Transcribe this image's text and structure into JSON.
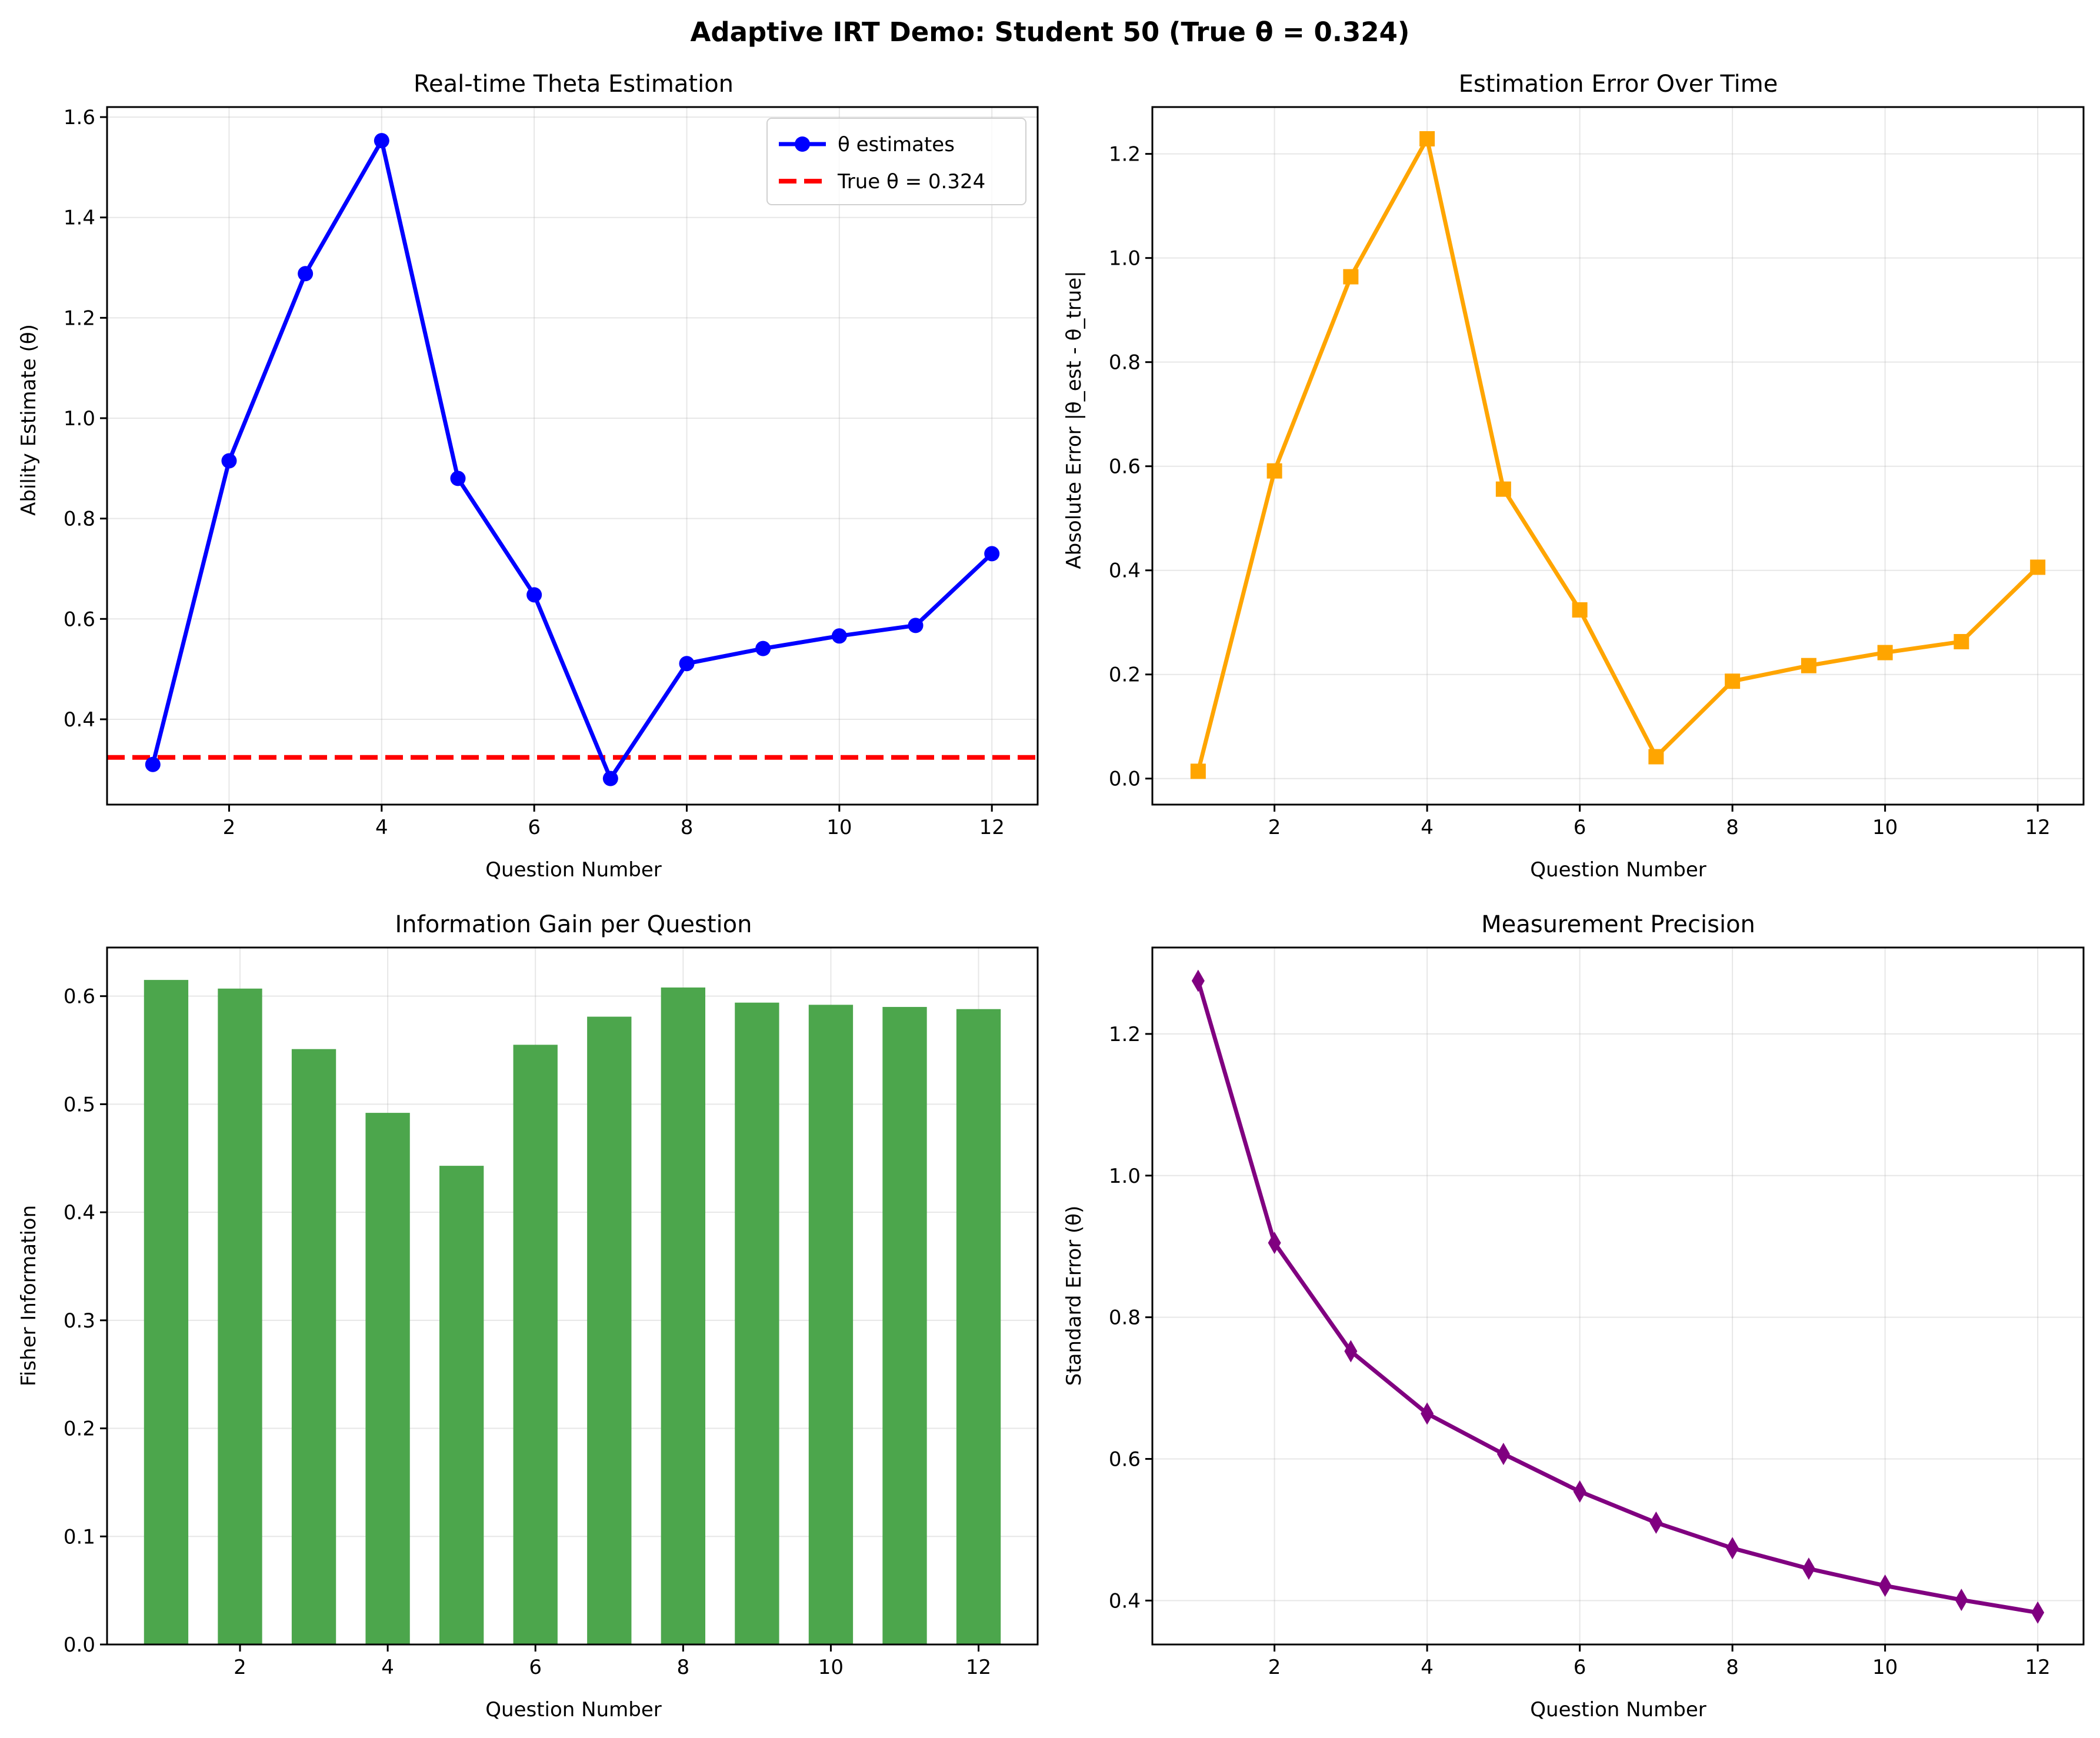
{
  "figure": {
    "suptitle": "Adaptive IRT Demo: Student 50 (True θ = 0.324)"
  },
  "chart_data": [
    {
      "id": "theta",
      "type": "line",
      "title": "Real-time Theta Estimation",
      "xlabel": "Question Number",
      "ylabel": "Ability Estimate (θ)",
      "x": [
        1,
        2,
        3,
        4,
        5,
        6,
        7,
        8,
        9,
        10,
        11,
        12
      ],
      "xlim": [
        0.4,
        12.6
      ],
      "ylim": [
        0.23,
        1.62
      ],
      "xticks": [
        2,
        4,
        6,
        8,
        10,
        12
      ],
      "yticks": [
        0.4,
        0.6,
        0.8,
        1.0,
        1.2,
        1.4,
        1.6
      ],
      "ydecimals": 1,
      "grid": true,
      "legend_position": "upper right",
      "series": [
        {
          "name": "θ estimates",
          "values": [
            0.31,
            0.915,
            1.288,
            1.553,
            0.88,
            0.648,
            0.282,
            0.511,
            0.541,
            0.566,
            0.587,
            0.73
          ],
          "color": "#0000ff",
          "marker": "circle"
        }
      ],
      "reference_line": {
        "label": "True θ = 0.324",
        "y": 0.324,
        "color": "#ff0000",
        "style": "dashed"
      }
    },
    {
      "id": "error",
      "type": "line",
      "title": "Estimation Error Over Time",
      "xlabel": "Question Number",
      "ylabel": "Absolute Error |θ_est - θ_true|",
      "x": [
        1,
        2,
        3,
        4,
        5,
        6,
        7,
        8,
        9,
        10,
        11,
        12
      ],
      "xlim": [
        0.4,
        12.6
      ],
      "ylim": [
        -0.05,
        1.29
      ],
      "xticks": [
        2,
        4,
        6,
        8,
        10,
        12
      ],
      "yticks": [
        0.0,
        0.2,
        0.4,
        0.6,
        0.8,
        1.0,
        1.2
      ],
      "ydecimals": 1,
      "grid": true,
      "series": [
        {
          "values": [
            0.014,
            0.591,
            0.964,
            1.229,
            0.556,
            0.324,
            0.042,
            0.187,
            0.217,
            0.242,
            0.263,
            0.406
          ],
          "color": "#ffa500",
          "marker": "square"
        }
      ]
    },
    {
      "id": "info",
      "type": "bar",
      "title": "Information Gain per Question",
      "xlabel": "Question Number",
      "ylabel": "Fisher Information",
      "x": [
        1,
        2,
        3,
        4,
        5,
        6,
        7,
        8,
        9,
        10,
        11,
        12
      ],
      "xlim": [
        0.2,
        12.8
      ],
      "ylim": [
        0.0,
        0.645
      ],
      "xticks": [
        2,
        4,
        6,
        8,
        10,
        12
      ],
      "yticks": [
        0.0,
        0.1,
        0.2,
        0.3,
        0.4,
        0.5,
        0.6
      ],
      "ydecimals": 1,
      "grid": true,
      "series": [
        {
          "values": [
            0.615,
            0.607,
            0.551,
            0.492,
            0.443,
            0.555,
            0.581,
            0.608,
            0.594,
            0.592,
            0.59,
            0.588
          ],
          "color": "#4ca64c"
        }
      ]
    },
    {
      "id": "se",
      "type": "line",
      "title": "Measurement Precision",
      "xlabel": "Question Number",
      "ylabel": "Standard Error (θ)",
      "x": [
        1,
        2,
        3,
        4,
        5,
        6,
        7,
        8,
        9,
        10,
        11,
        12
      ],
      "xlim": [
        0.4,
        12.6
      ],
      "ylim": [
        0.338,
        1.322
      ],
      "xticks": [
        2,
        4,
        6,
        8,
        10,
        12
      ],
      "yticks": [
        0.4,
        0.6,
        0.8,
        1.0,
        1.2
      ],
      "ydecimals": 1,
      "grid": true,
      "series": [
        {
          "values": [
            1.275,
            0.905,
            0.752,
            0.664,
            0.607,
            0.554,
            0.51,
            0.474,
            0.445,
            0.421,
            0.401,
            0.383
          ],
          "color": "#800080",
          "marker": "diamond"
        }
      ]
    }
  ]
}
